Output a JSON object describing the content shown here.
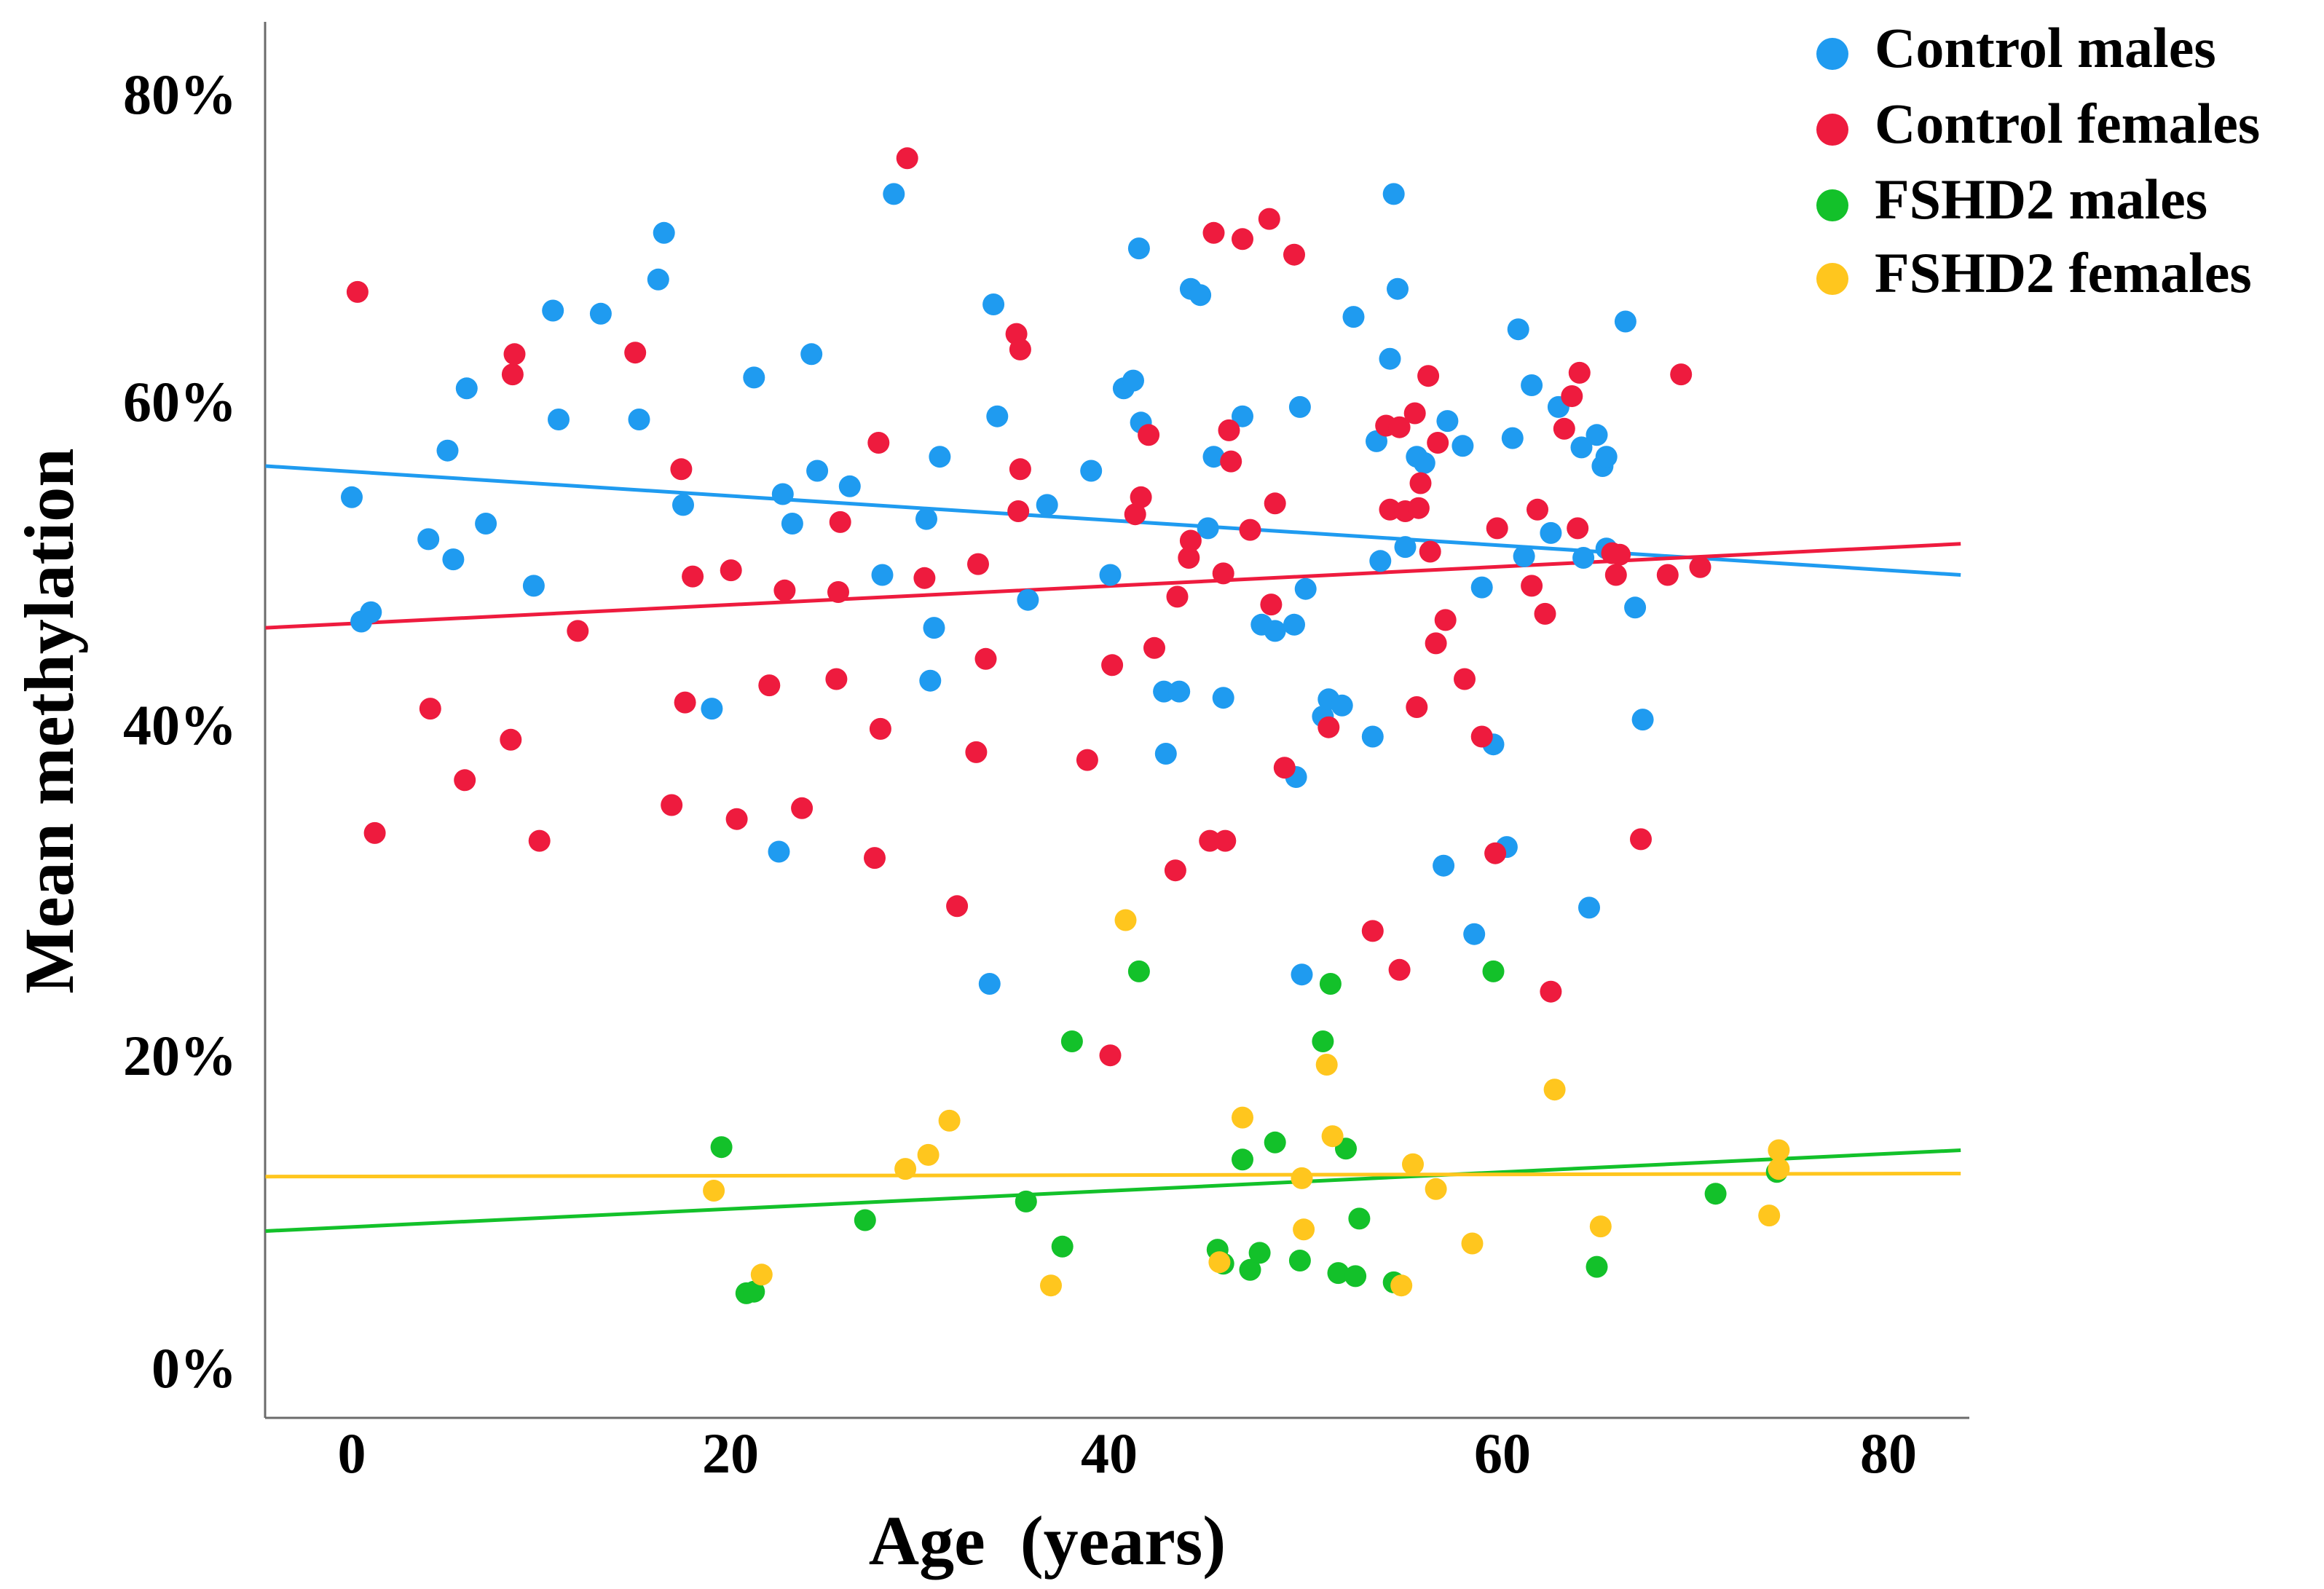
{
  "chart_data": {
    "type": "scatter",
    "title": "",
    "xlabel": "Age  (years)",
    "ylabel": "Mean methylation",
    "xlim": [
      -4.5,
      84
    ],
    "ylim": [
      -4,
      86
    ],
    "x_ticks": [
      0,
      20,
      40,
      60,
      80
    ],
    "x_tick_labels": [
      "0",
      "20",
      "40",
      "60",
      "80"
    ],
    "y_ticks": [
      0,
      20,
      40,
      60,
      80
    ],
    "y_tick_labels": [
      "0%",
      "20%",
      "40%",
      "60%",
      "80%"
    ],
    "grid": false,
    "legend": "top-right",
    "series": [
      {
        "name": "Control males",
        "color": "#1F9BF0",
        "trend": {
          "x": [
            -4.5,
            84
          ],
          "y": [
            57.0,
            50.0
          ]
        },
        "points": [
          [
            0,
            55
          ],
          [
            0.5,
            47
          ],
          [
            1,
            47.6
          ],
          [
            4,
            52.3
          ],
          [
            5,
            58
          ],
          [
            5.3,
            51
          ],
          [
            6,
            62
          ],
          [
            7,
            53.3
          ],
          [
            9.5,
            49.3
          ],
          [
            10.5,
            67
          ],
          [
            10.8,
            60
          ],
          [
            13,
            66.8
          ],
          [
            15,
            60
          ],
          [
            16,
            69
          ],
          [
            16.3,
            72
          ],
          [
            17.3,
            54.5
          ],
          [
            18.8,
            41.4
          ],
          [
            21,
            62.7
          ],
          [
            22.3,
            32.2
          ],
          [
            22.5,
            55.2
          ],
          [
            23,
            53.3
          ],
          [
            24,
            64.2
          ],
          [
            24.3,
            56.7
          ],
          [
            26,
            55.7
          ],
          [
            27.7,
            50
          ],
          [
            28.3,
            74.5
          ],
          [
            30,
            53.6
          ],
          [
            30.2,
            43.2
          ],
          [
            30.4,
            46.6
          ],
          [
            30.7,
            57.6
          ],
          [
            33.3,
            23.7
          ],
          [
            33.5,
            67.4
          ],
          [
            33.7,
            60.2
          ],
          [
            35.3,
            48.4
          ],
          [
            36.3,
            54.5
          ],
          [
            38.6,
            56.7
          ],
          [
            39.6,
            50
          ],
          [
            40.3,
            62
          ],
          [
            40.8,
            62.5
          ],
          [
            41.1,
            71
          ],
          [
            41.2,
            59.8
          ],
          [
            42.4,
            42.5
          ],
          [
            42.5,
            38.5
          ],
          [
            43.2,
            42.5
          ],
          [
            43.8,
            68.4
          ],
          [
            44.3,
            68
          ],
          [
            44.7,
            53
          ],
          [
            45,
            57.6
          ],
          [
            45.5,
            42.1
          ],
          [
            46.5,
            60.2
          ],
          [
            47.5,
            46.8
          ],
          [
            48.2,
            46.4
          ],
          [
            49.2,
            46.8
          ],
          [
            49.3,
            37
          ],
          [
            49.5,
            60.8
          ],
          [
            49.6,
            24.3
          ],
          [
            49.8,
            49.1
          ],
          [
            50.7,
            40.9
          ],
          [
            51,
            42
          ],
          [
            51.7,
            41.6
          ],
          [
            52.3,
            66.6
          ],
          [
            53.3,
            39.6
          ],
          [
            53.5,
            58.6
          ],
          [
            53.7,
            50.9
          ],
          [
            54.2,
            63.9
          ],
          [
            54.4,
            74.5
          ],
          [
            54.6,
            68.4
          ],
          [
            55,
            51.8
          ],
          [
            55.6,
            57.6
          ],
          [
            56,
            57.2
          ],
          [
            57,
            31.3
          ],
          [
            57.2,
            59.9
          ],
          [
            58,
            58.3
          ],
          [
            58.6,
            26.9
          ],
          [
            59,
            49.2
          ],
          [
            59.6,
            39.1
          ],
          [
            60.3,
            32.5
          ],
          [
            60.6,
            58.8
          ],
          [
            60.9,
            65.8
          ],
          [
            61.2,
            51.2
          ],
          [
            61.6,
            62.2
          ],
          [
            62.6,
            52.7
          ],
          [
            63,
            60.8
          ],
          [
            64.2,
            58.2
          ],
          [
            64.3,
            51.1
          ],
          [
            64.6,
            28.6
          ],
          [
            65,
            59
          ],
          [
            65.3,
            57
          ],
          [
            65.5,
            57.6
          ],
          [
            65.5,
            51.7
          ],
          [
            66.5,
            66.3
          ],
          [
            67,
            47.9
          ],
          [
            67.4,
            40.7
          ]
        ]
      },
      {
        "name": "Control females",
        "color": "#EE1B3E",
        "trend": {
          "x": [
            -4.5,
            84
          ],
          "y": [
            46.6,
            52.0
          ]
        },
        "points": [
          [
            0.3,
            68.2
          ],
          [
            1.2,
            33.4
          ],
          [
            4.1,
            41.4
          ],
          [
            5.9,
            36.8
          ],
          [
            8.3,
            39.4
          ],
          [
            8.4,
            62.9
          ],
          [
            8.5,
            64.2
          ],
          [
            9.8,
            32.9
          ],
          [
            11.8,
            46.4
          ],
          [
            14.8,
            64.3
          ],
          [
            16.7,
            35.2
          ],
          [
            17.2,
            56.8
          ],
          [
            17.4,
            41.8
          ],
          [
            17.8,
            49.9
          ],
          [
            19.8,
            50.3
          ],
          [
            20.1,
            34.3
          ],
          [
            21.8,
            42.9
          ],
          [
            22.6,
            49
          ],
          [
            23.5,
            35
          ],
          [
            25.3,
            43.3
          ],
          [
            25.4,
            48.9
          ],
          [
            25.5,
            53.4
          ],
          [
            27.3,
            31.8
          ],
          [
            27.5,
            58.5
          ],
          [
            27.6,
            40.1
          ],
          [
            29,
            76.8
          ],
          [
            29.9,
            49.8
          ],
          [
            31.6,
            28.7
          ],
          [
            32.6,
            38.6
          ],
          [
            32.7,
            50.7
          ],
          [
            33.1,
            44.6
          ],
          [
            34.7,
            65.5
          ],
          [
            34.8,
            54.1
          ],
          [
            34.9,
            56.8
          ],
          [
            34.9,
            64.5
          ],
          [
            38.4,
            38.1
          ],
          [
            39.6,
            19.1
          ],
          [
            39.7,
            44.2
          ],
          [
            40.9,
            53.9
          ],
          [
            41.2,
            55
          ],
          [
            41.6,
            59
          ],
          [
            41.9,
            45.3
          ],
          [
            43,
            31
          ],
          [
            43.1,
            48.6
          ],
          [
            43.7,
            51.1
          ],
          [
            43.8,
            52.2
          ],
          [
            44.8,
            32.9
          ],
          [
            45,
            72
          ],
          [
            45.5,
            50.1
          ],
          [
            45.6,
            32.9
          ],
          [
            45.8,
            59.3
          ],
          [
            45.9,
            57.3
          ],
          [
            46.5,
            71.6
          ],
          [
            46.9,
            52.9
          ],
          [
            47.9,
            72.9
          ],
          [
            48,
            48.1
          ],
          [
            48.2,
            54.6
          ],
          [
            48.7,
            37.6
          ],
          [
            49.2,
            70.6
          ],
          [
            51,
            40.2
          ],
          [
            53.3,
            27.1
          ],
          [
            54,
            59.6
          ],
          [
            54.2,
            54.2
          ],
          [
            54.7,
            24.6
          ],
          [
            54.7,
            59.5
          ],
          [
            55,
            54.1
          ],
          [
            55.5,
            60.4
          ],
          [
            55.6,
            41.5
          ],
          [
            55.7,
            54.3
          ],
          [
            55.8,
            55.9
          ],
          [
            56.2,
            62.8
          ],
          [
            56.3,
            51.5
          ],
          [
            56.6,
            45.6
          ],
          [
            56.7,
            58.5
          ],
          [
            57.1,
            47.1
          ],
          [
            58.1,
            43.3
          ],
          [
            59,
            39.6
          ],
          [
            59.7,
            32.1
          ],
          [
            59.8,
            53
          ],
          [
            61.6,
            49.3
          ],
          [
            61.9,
            54.2
          ],
          [
            62.3,
            47.5
          ],
          [
            62.6,
            23.2
          ],
          [
            63.3,
            59.4
          ],
          [
            63.7,
            61.5
          ],
          [
            64,
            53
          ],
          [
            64.1,
            63
          ],
          [
            65.8,
            51.4
          ],
          [
            66,
            50
          ],
          [
            66.2,
            51.3
          ],
          [
            67.3,
            33
          ],
          [
            68.7,
            50
          ],
          [
            69.4,
            62.9
          ],
          [
            70.4,
            50.5
          ]
        ]
      },
      {
        "name": "FSHD2 males",
        "color": "#13C12A",
        "trend": {
          "x": [
            -4.5,
            84
          ],
          "y": [
            7.8,
            13.0
          ]
        },
        "points": [
          [
            19.3,
            13.2
          ],
          [
            20.6,
            3.8
          ],
          [
            21,
            3.9
          ],
          [
            26.8,
            8.5
          ],
          [
            35.2,
            9.7
          ],
          [
            37.1,
            6.8
          ],
          [
            37.6,
            20
          ],
          [
            41.1,
            24.5
          ],
          [
            45.2,
            6.6
          ],
          [
            45.5,
            5.7
          ],
          [
            46.5,
            12.4
          ],
          [
            46.9,
            5.3
          ],
          [
            47.4,
            6.4
          ],
          [
            48.2,
            13.5
          ],
          [
            49.5,
            5.9
          ],
          [
            50.7,
            20
          ],
          [
            51.1,
            23.7
          ],
          [
            51.5,
            5.1
          ],
          [
            51.9,
            13.1
          ],
          [
            52.4,
            4.9
          ],
          [
            52.6,
            8.6
          ],
          [
            54.4,
            4.5
          ],
          [
            59.6,
            24.5
          ],
          [
            65,
            5.5
          ],
          [
            71.2,
            10.2
          ],
          [
            74.4,
            11.6
          ]
        ]
      },
      {
        "name": "FSHD2 females",
        "color": "#FFC61E",
        "trend": {
          "x": [
            -4.5,
            84
          ],
          "y": [
            11.3,
            11.5
          ]
        },
        "points": [
          [
            18.9,
            10.4
          ],
          [
            21.4,
            5
          ],
          [
            28.9,
            11.8
          ],
          [
            30.1,
            12.7
          ],
          [
            31.2,
            14.9
          ],
          [
            36.5,
            4.3
          ],
          [
            40.4,
            27.8
          ],
          [
            45.3,
            5.8
          ],
          [
            46.5,
            15.1
          ],
          [
            49.6,
            11.2
          ],
          [
            49.7,
            7.9
          ],
          [
            50.9,
            18.5
          ],
          [
            51.2,
            13.9
          ],
          [
            54.8,
            4.3
          ],
          [
            55.4,
            12.1
          ],
          [
            56.6,
            10.5
          ],
          [
            58.5,
            7
          ],
          [
            62.8,
            16.9
          ],
          [
            65.2,
            8.1
          ],
          [
            74,
            8.8
          ],
          [
            74.5,
            13
          ],
          [
            74.5,
            11.8
          ]
        ]
      }
    ]
  }
}
